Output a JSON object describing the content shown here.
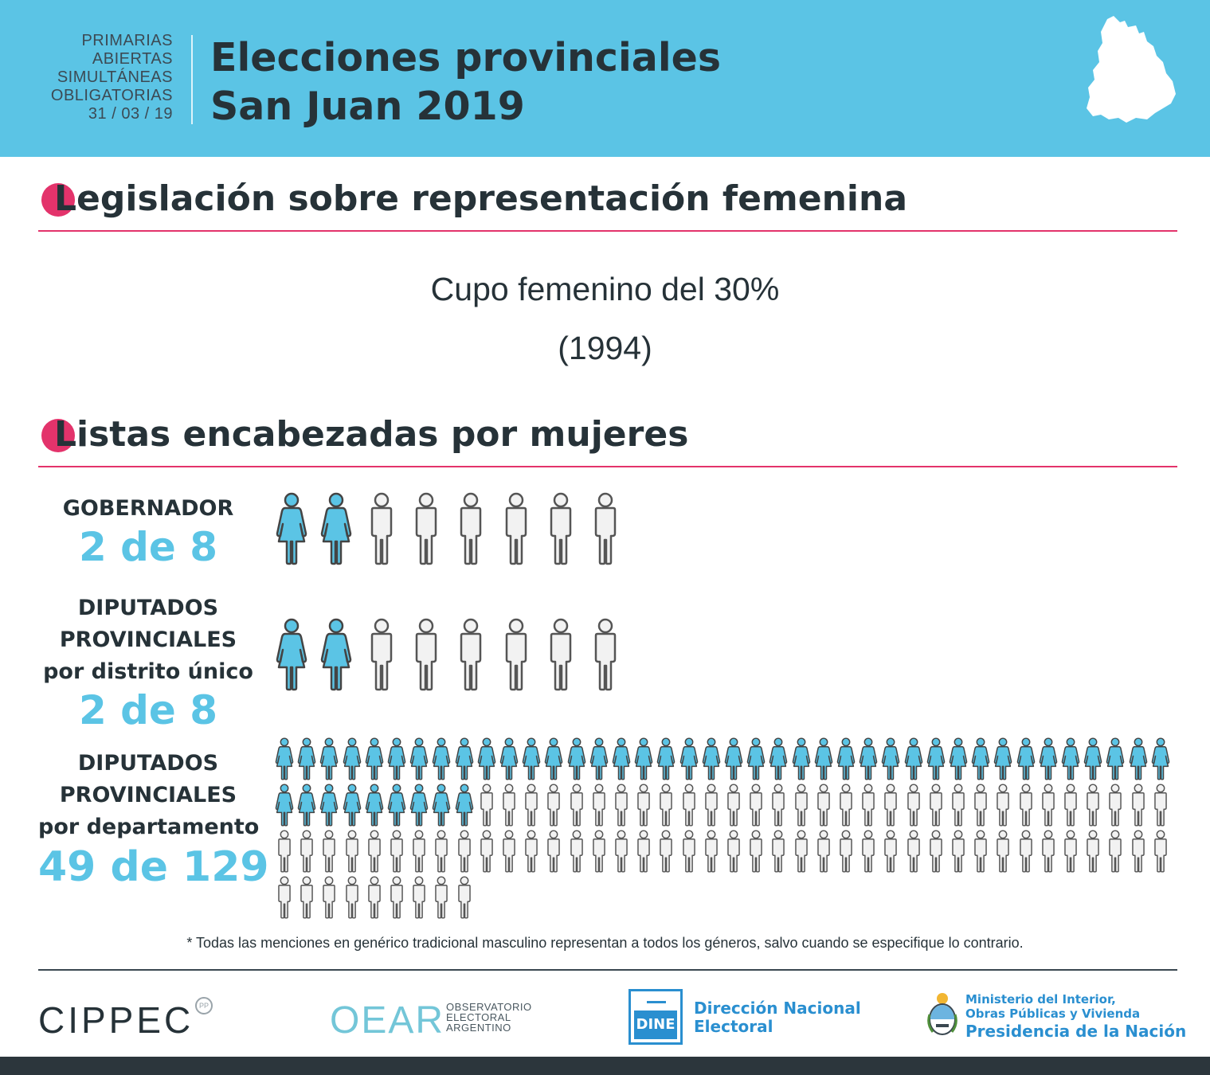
{
  "header": {
    "paso_lines": [
      "PRIMARIAS",
      "ABIERTAS",
      "SIMULTÁNEAS",
      "OBLIGATORIAS",
      "31 / 03 / 19"
    ],
    "title_line1": "Elecciones provinciales",
    "title_line2": "San Juan 2019",
    "background_color": "#5bc4e5"
  },
  "section_legislacion": {
    "title": "Legislación sobre representación femenina",
    "cupo_line1": "Cupo femenino del 30%",
    "cupo_line2": "(1994)"
  },
  "section_listas": {
    "title": "Listas encabezadas por mujeres",
    "rows": [
      {
        "label_lines": [
          "GOBERNADOR"
        ],
        "count_text": "2 de 8",
        "women": 2,
        "total": 8
      },
      {
        "label_lines": [
          "DIPUTADOS",
          "PROVINCIALES",
          "por distrito único"
        ],
        "count_text": "2 de 8",
        "women": 2,
        "total": 8
      },
      {
        "label_lines": [
          "DIPUTADOS",
          "PROVINCIALES",
          "por departamento"
        ],
        "count_text": "49 de 129",
        "women": 49,
        "total": 129
      }
    ]
  },
  "colors": {
    "accent": "#e3336b",
    "woman": "#5bc4e5",
    "man": "#f2f2f2",
    "text": "#263238"
  },
  "note": "* Todas las menciones en genérico tradicional masculino representan a todos los géneros, salvo cuando se especifique lo contrario.",
  "footer": {
    "cippec": "CIPPEC",
    "cippec_badge": "PP",
    "oear_mark": "OEAR",
    "oear_sub": [
      "OBSERVATORIO",
      "ELECTORAL",
      "ARGENTINO"
    ],
    "dine_box": "DINE",
    "dine_text": [
      "Dirección Nacional",
      "Electoral"
    ],
    "ministerio_text": [
      "Ministerio del Interior,",
      "Obras Públicas y Vivienda",
      "Presidencia de la Nación"
    ]
  }
}
